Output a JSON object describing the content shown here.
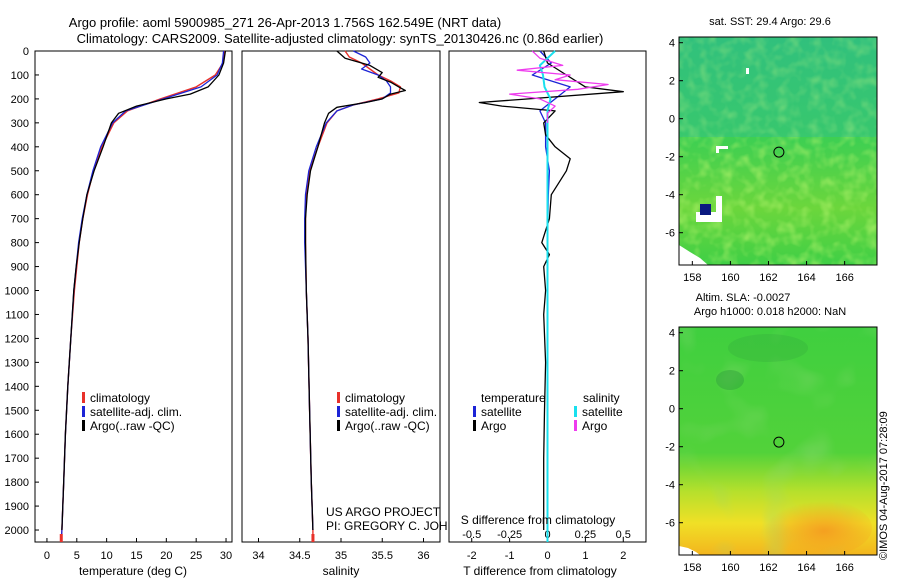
{
  "title": {
    "line1": "Argo profile: aoml 5900985_271 26-Apr-2013 1.756S 162.549E (NRT data)",
    "line2": "Climatology: CARS2009. Satellite-adjusted climatology: synTS_20130426.nc (0.86d earlier)"
  },
  "colors": {
    "climatology": "#e8312a",
    "satellite": "#1c24d6",
    "argo": "#000000",
    "salinity_satellite": "#19e0ee",
    "salinity_argo": "#ee3cee"
  },
  "depth_axis": {
    "range": [
      0,
      2050
    ],
    "ticks": [
      "0",
      "100",
      "200",
      "300",
      "400",
      "500",
      "600",
      "700",
      "800",
      "900",
      "1000",
      "1100",
      "1200",
      "1300",
      "1400",
      "1500",
      "1600",
      "1700",
      "1800",
      "1900",
      "2000"
    ]
  },
  "chart_data": [
    {
      "id": "temperature",
      "type": "line",
      "xlabel": "temperature (deg C)",
      "xlim": [
        -2,
        31
      ],
      "xticks": [
        "0",
        "5",
        "10",
        "15",
        "20",
        "25",
        "30"
      ],
      "ylabel": "depth",
      "ylim": [
        0,
        2050
      ],
      "legend": {
        "entries": [
          "climatology",
          "satellite-adj. clim.",
          "Argo(..raw -QC)"
        ],
        "placement": "lower-center"
      },
      "series": [
        {
          "name": "climatology",
          "color": "#e8312a",
          "depth": [
            0,
            50,
            100,
            150,
            200,
            250,
            300,
            400,
            500,
            600,
            700,
            800,
            900,
            1000,
            1200,
            1400,
            1600,
            1800,
            2000,
            2050
          ],
          "values": [
            29.8,
            29.5,
            28.2,
            25.0,
            19.0,
            13.5,
            11.2,
            9.2,
            7.8,
            6.8,
            6.0,
            5.4,
            5.0,
            4.6,
            4.0,
            3.5,
            3.1,
            2.8,
            2.5,
            2.4
          ]
        },
        {
          "name": "satellite-adj. clim.",
          "color": "#1c24d6",
          "depth": [
            0,
            50,
            100,
            150,
            200,
            250,
            300,
            400,
            500,
            600,
            700,
            800,
            900,
            1000,
            1200,
            1400,
            1600,
            1800,
            2000,
            2050
          ],
          "values": [
            29.6,
            29.4,
            28.5,
            25.8,
            19.5,
            13.2,
            11.0,
            9.0,
            7.7,
            6.7,
            5.9,
            5.3,
            4.9,
            4.5,
            4.0,
            3.5,
            3.1,
            2.8,
            2.5,
            2.4
          ]
        },
        {
          "name": "Argo(..raw -QC)",
          "color": "#000000",
          "depth": [
            0,
            50,
            100,
            150,
            180,
            200,
            230,
            260,
            300,
            400,
            500,
            600,
            700,
            800,
            900,
            1000,
            1200,
            1400,
            1600,
            1800,
            2000
          ],
          "values": [
            29.9,
            29.6,
            28.8,
            27.0,
            24.0,
            20.0,
            15.0,
            12.0,
            10.8,
            9.4,
            7.9,
            6.7,
            6.0,
            5.4,
            4.9,
            4.5,
            4.0,
            3.5,
            3.1,
            2.8,
            2.5
          ]
        }
      ]
    },
    {
      "id": "salinity",
      "type": "line",
      "xlabel": "salinity",
      "xlim": [
        33.8,
        36.2
      ],
      "xticks": [
        "34",
        "34.5",
        "35",
        "35.5",
        "36"
      ],
      "ylim": [
        0,
        2050
      ],
      "legend": {
        "entries": [
          "climatology",
          "satellite-adj. clim.",
          "Argo(..raw -QC)"
        ],
        "placement": "lower-right"
      },
      "annotations": [
        "US ARGO PROJECT",
        "PI: GREGORY C. JOHNSON"
      ],
      "series": [
        {
          "name": "climatology",
          "color": "#e8312a",
          "depth": [
            0,
            25,
            50,
            75,
            100,
            125,
            150,
            175,
            200,
            225,
            250,
            300,
            400,
            500,
            600,
            700,
            800,
            1000,
            1200,
            1500,
            1800,
            2000,
            2050
          ],
          "values": [
            35.05,
            35.1,
            35.25,
            35.35,
            35.45,
            35.6,
            35.72,
            35.7,
            35.45,
            35.15,
            34.95,
            34.83,
            34.72,
            34.62,
            34.58,
            34.57,
            34.57,
            34.58,
            34.6,
            34.62,
            34.64,
            34.66,
            34.66
          ]
        },
        {
          "name": "satellite-adj. clim.",
          "color": "#1c24d6",
          "depth": [
            0,
            25,
            50,
            75,
            100,
            125,
            150,
            175,
            200,
            225,
            250,
            300,
            400,
            500,
            600,
            700,
            800,
            1000,
            1200,
            1500,
            1800,
            2000
          ],
          "values": [
            35.15,
            35.3,
            35.35,
            35.25,
            35.45,
            35.55,
            35.6,
            35.6,
            35.5,
            35.15,
            34.95,
            34.82,
            34.7,
            34.61,
            34.57,
            34.56,
            34.56,
            34.58,
            34.6,
            34.62,
            34.64,
            34.66
          ]
        },
        {
          "name": "Argo(..raw -QC)",
          "color": "#000000",
          "depth": [
            0,
            30,
            60,
            90,
            110,
            130,
            150,
            165,
            180,
            200,
            215,
            235,
            260,
            300,
            400,
            500,
            600,
            700,
            800,
            1000,
            1200,
            1500,
            1800,
            2000
          ],
          "values": [
            34.95,
            35.05,
            35.35,
            35.5,
            35.45,
            35.6,
            35.7,
            35.78,
            35.6,
            35.5,
            35.3,
            34.95,
            34.85,
            34.8,
            34.72,
            34.63,
            34.59,
            34.57,
            34.57,
            34.58,
            34.6,
            34.62,
            34.64,
            34.66
          ]
        }
      ]
    },
    {
      "id": "difference",
      "type": "line",
      "xlabel": "T difference from climatology",
      "x2label": "S difference from climatology",
      "xlim": [
        -2.6,
        2.6
      ],
      "xticks": [
        "-2",
        "-1",
        "0",
        "1",
        "2"
      ],
      "x2ticks": [
        "-0.5",
        "-0.25",
        "0",
        "0.25",
        "0.5"
      ],
      "ylim": [
        0,
        2050
      ],
      "legend": {
        "placement": "lower-center",
        "temperature_header": "temperature",
        "salinity_header": "salinity",
        "entries": [
          "satellite",
          "Argo",
          "satellite",
          "Argo"
        ]
      },
      "series": [
        {
          "name": "temperature satellite",
          "color": "#1c24d6",
          "depth": [
            0,
            50,
            100,
            150,
            200,
            250,
            300,
            400,
            500,
            600,
            800,
            1000,
            1500,
            2000
          ],
          "values": [
            -0.2,
            0.1,
            -0.4,
            0.6,
            0.2,
            -0.2,
            -0.05,
            -0.05,
            0.05,
            0.02,
            0.0,
            0.0,
            0.0,
            0.0
          ]
        },
        {
          "name": "temperature Argo",
          "color": "#000000",
          "depth": [
            0,
            50,
            100,
            150,
            170,
            200,
            215,
            230,
            250,
            300,
            350,
            400,
            450,
            500,
            550,
            600,
            700,
            800,
            850,
            900,
            1000,
            1100,
            1300,
            1500,
            1700,
            2000
          ],
          "values": [
            -0.1,
            0.0,
            0.5,
            1.0,
            2.0,
            -0.5,
            -1.8,
            -1.2,
            0.2,
            -0.1,
            -0.05,
            0.2,
            0.6,
            0.5,
            0.3,
            0.1,
            0.05,
            -0.15,
            0.05,
            -0.1,
            -0.05,
            -0.1,
            -0.05,
            -0.08,
            -0.1,
            -0.1
          ]
        },
        {
          "name": "salinity satellite",
          "color": "#19e0ee",
          "depth": [
            0,
            30,
            60,
            100,
            150,
            200,
            250,
            300,
            400,
            600,
            800,
            1000,
            1500,
            2050
          ],
          "values": [
            0.05,
            0.0,
            -0.05,
            -0.03,
            -0.02,
            0.02,
            0.0,
            0.0,
            0.0,
            0.0,
            0.0,
            0.0,
            0.0,
            0.0
          ]
        },
        {
          "name": "salinity Argo",
          "color": "#ee3cee",
          "depth": [
            0,
            30,
            60,
            80,
            100,
            120,
            140,
            160,
            180,
            200,
            230,
            260,
            300
          ],
          "values": [
            -0.1,
            -0.05,
            0.1,
            -0.2,
            0.15,
            0.05,
            0.4,
            0.2,
            -0.25,
            -0.05,
            0.05,
            0.0,
            0.0
          ]
        }
      ]
    },
    {
      "id": "sst-map",
      "type": "heatmap",
      "title": "sat. SST: 29.4 Argo: 29.6",
      "xlim": [
        157.3,
        167.7
      ],
      "ylim": [
        -7.7,
        4.3
      ],
      "xticks": [
        "158",
        "160",
        "162",
        "164",
        "166"
      ],
      "yticks": [
        "4",
        "2",
        "0",
        "-2",
        "-4",
        "-6"
      ],
      "marker": {
        "lon": 162.549,
        "lat": -1.756
      }
    },
    {
      "id": "sla-map",
      "type": "heatmap",
      "title1": "Altim. SLA: -0.0027",
      "title2": "Argo h1000: 0.018 h2000: NaN",
      "xlim": [
        157.3,
        167.7
      ],
      "ylim": [
        -7.7,
        4.3
      ],
      "xticks": [
        "158",
        "160",
        "162",
        "164",
        "166"
      ],
      "yticks": [
        "4",
        "2",
        "0",
        "-2",
        "-4",
        "-6"
      ],
      "marker": {
        "lon": 162.549,
        "lat": -1.756
      }
    }
  ],
  "footer": "©IMOS 04-Aug-2017 07:28:09"
}
